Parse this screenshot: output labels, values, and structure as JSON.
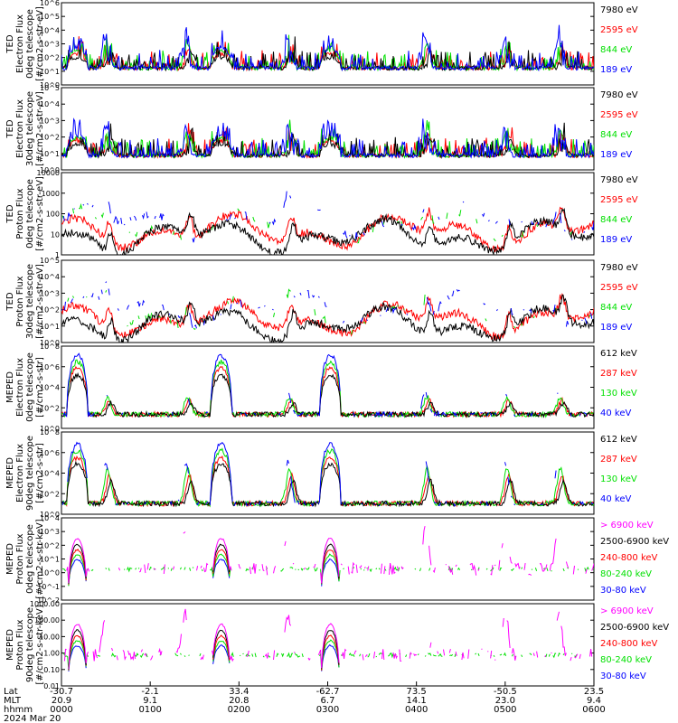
{
  "colors": {
    "blue": "#0000ff",
    "red": "#ff0000",
    "green": "#00e000",
    "black": "#000000",
    "magenta": "#ff00ff"
  },
  "panels": [
    {
      "ylabel": [
        "TED",
        "Electron Flux",
        "0deg telescope",
        "[#/cm2-s-str-eV]"
      ],
      "ticks": [
        "10^6",
        "10^5",
        "10^4",
        "10^3",
        "10^2",
        "10^1",
        "10^0"
      ],
      "legend": [
        {
          "text": "7980 eV",
          "color": "black"
        },
        {
          "text": "2595 eV",
          "color": "red"
        },
        {
          "text": "844 eV",
          "color": "green"
        },
        {
          "text": "189 eV",
          "color": "blue"
        }
      ]
    },
    {
      "ylabel": [
        "TED",
        "Electron Flux",
        "30deg telescope",
        "[#/cm2-s-str-eV]"
      ],
      "ticks": [
        "10^5",
        "10^4",
        "10^3",
        "10^2",
        "10^1",
        "10^0"
      ],
      "legend": [
        {
          "text": "7980 eV",
          "color": "black"
        },
        {
          "text": "2595 eV",
          "color": "red"
        },
        {
          "text": "844 eV",
          "color": "green"
        },
        {
          "text": "189 eV",
          "color": "blue"
        }
      ]
    },
    {
      "ylabel": [
        "TED",
        "Proton Flux",
        "0deg telescope",
        "[#/cm2-s-str-eV]"
      ],
      "ticks": [
        "10000",
        "1000",
        "100",
        "10",
        "1"
      ],
      "legend": [
        {
          "text": "7980 eV",
          "color": "black"
        },
        {
          "text": "2595 eV",
          "color": "red"
        },
        {
          "text": "844 eV",
          "color": "green"
        },
        {
          "text": "189 eV",
          "color": "blue"
        }
      ]
    },
    {
      "ylabel": [
        "TED",
        "Proton Flux",
        "30deg telescope",
        "[#/cm2-s-str-eV]"
      ],
      "ticks": [
        "10^5",
        "10^4",
        "10^3",
        "10^2",
        "10^1",
        "10^0"
      ],
      "legend": [
        {
          "text": "7980 eV",
          "color": "black"
        },
        {
          "text": "2595 eV",
          "color": "red"
        },
        {
          "text": "844 eV",
          "color": "green"
        },
        {
          "text": "189 eV",
          "color": "blue"
        }
      ]
    },
    {
      "ylabel": [
        "MEPED",
        "Electron Flux",
        "0deg telescope",
        "[#/cm2-s-str]"
      ],
      "ticks": [
        "10^8",
        "10^6",
        "10^4",
        "10^2",
        "10^0"
      ],
      "legend": [
        {
          "text": "612 keV",
          "color": "black"
        },
        {
          "text": "287 keV",
          "color": "red"
        },
        {
          "text": "130 keV",
          "color": "green"
        },
        {
          "text": "40 keV",
          "color": "blue"
        }
      ]
    },
    {
      "ylabel": [
        "MEPED",
        "Electron Flux",
        "90deg telescope",
        "[#/cm2-s-str]"
      ],
      "ticks": [
        "10^8",
        "10^6",
        "10^4",
        "10^2",
        "10^0"
      ],
      "legend": [
        {
          "text": "612 keV",
          "color": "black"
        },
        {
          "text": "287 keV",
          "color": "red"
        },
        {
          "text": "130 keV",
          "color": "green"
        },
        {
          "text": "40 keV",
          "color": "blue"
        }
      ]
    },
    {
      "ylabel": [
        "MEPED",
        "Proton Flux",
        "0deg telescope",
        "[#/cm2-s-str-keV]"
      ],
      "ticks": [
        "10^4",
        "10^3",
        "10^2",
        "10^1",
        "10^0",
        "10^-1",
        "10^-2"
      ],
      "legend": [
        {
          "text": "> 6900 keV",
          "color": "magenta"
        },
        {
          "text": "2500-6900 keV",
          "color": "black"
        },
        {
          "text": "240-800 keV",
          "color": "red"
        },
        {
          "text": "80-240 keV",
          "color": "green"
        },
        {
          "text": "30-80 keV",
          "color": "blue"
        }
      ]
    },
    {
      "ylabel": [
        "MEPED",
        "Proton Flux",
        "90deg telescope",
        "[#/cm2-s-str-keV]"
      ],
      "ticks": [
        "1000.00",
        "100.00",
        "10.00",
        "1.00",
        "0.10",
        "0.01"
      ],
      "legend": [
        {
          "text": "> 6900 keV",
          "color": "magenta"
        },
        {
          "text": "2500-6900 keV",
          "color": "black"
        },
        {
          "text": "240-800 keV",
          "color": "red"
        },
        {
          "text": "80-240 keV",
          "color": "green"
        },
        {
          "text": "30-80 keV",
          "color": "blue"
        }
      ]
    }
  ],
  "xaxis": {
    "row_labels": [
      "Lat",
      "MLT",
      "hhmm",
      "2024 Mar 20"
    ],
    "columns": [
      {
        "lat": "-30.7",
        "mlt": "20.9",
        "hhmm": "0000"
      },
      {
        "lat": "-2.1",
        "mlt": "9.1",
        "hhmm": "0100"
      },
      {
        "lat": "33.4",
        "mlt": "20.8",
        "hhmm": "0200"
      },
      {
        "lat": "-62.7",
        "mlt": "6.7",
        "hhmm": "0300"
      },
      {
        "lat": "73.5",
        "mlt": "14.1",
        "hhmm": "0400"
      },
      {
        "lat": "-50.5",
        "mlt": "23.0",
        "hhmm": "0500"
      },
      {
        "lat": "23.5",
        "mlt": "9.4",
        "hhmm": "0600"
      }
    ]
  },
  "chart_data": {
    "type": "line",
    "x_label": "UT hhmm",
    "x_range": [
      "0000",
      "0600"
    ],
    "y_scale": "log",
    "panel_count": 8,
    "series_per_panel": [
      [
        "7980 eV",
        "2595 eV",
        "844 eV",
        "189 eV"
      ],
      [
        "7980 eV",
        "2595 eV",
        "844 eV",
        "189 eV"
      ],
      [
        "7980 eV",
        "2595 eV",
        "844 eV",
        "189 eV"
      ],
      [
        "7980 eV",
        "2595 eV",
        "844 eV",
        "189 eV"
      ],
      [
        "612 keV",
        "287 keV",
        "130 keV",
        "40 keV"
      ],
      [
        "612 keV",
        "287 keV",
        "130 keV",
        "40 keV"
      ],
      [
        "> 6900 keV",
        "2500-6900 keV",
        "240-800 keV",
        "80-240 keV",
        "30-80 keV"
      ],
      [
        "> 6900 keV",
        "2500-6900 keV",
        "240-800 keV",
        "80-240 keV",
        "30-80 keV"
      ]
    ],
    "radiation_belt_passes_hhmm": [
      "0011",
      "0148",
      "0302"
    ]
  }
}
